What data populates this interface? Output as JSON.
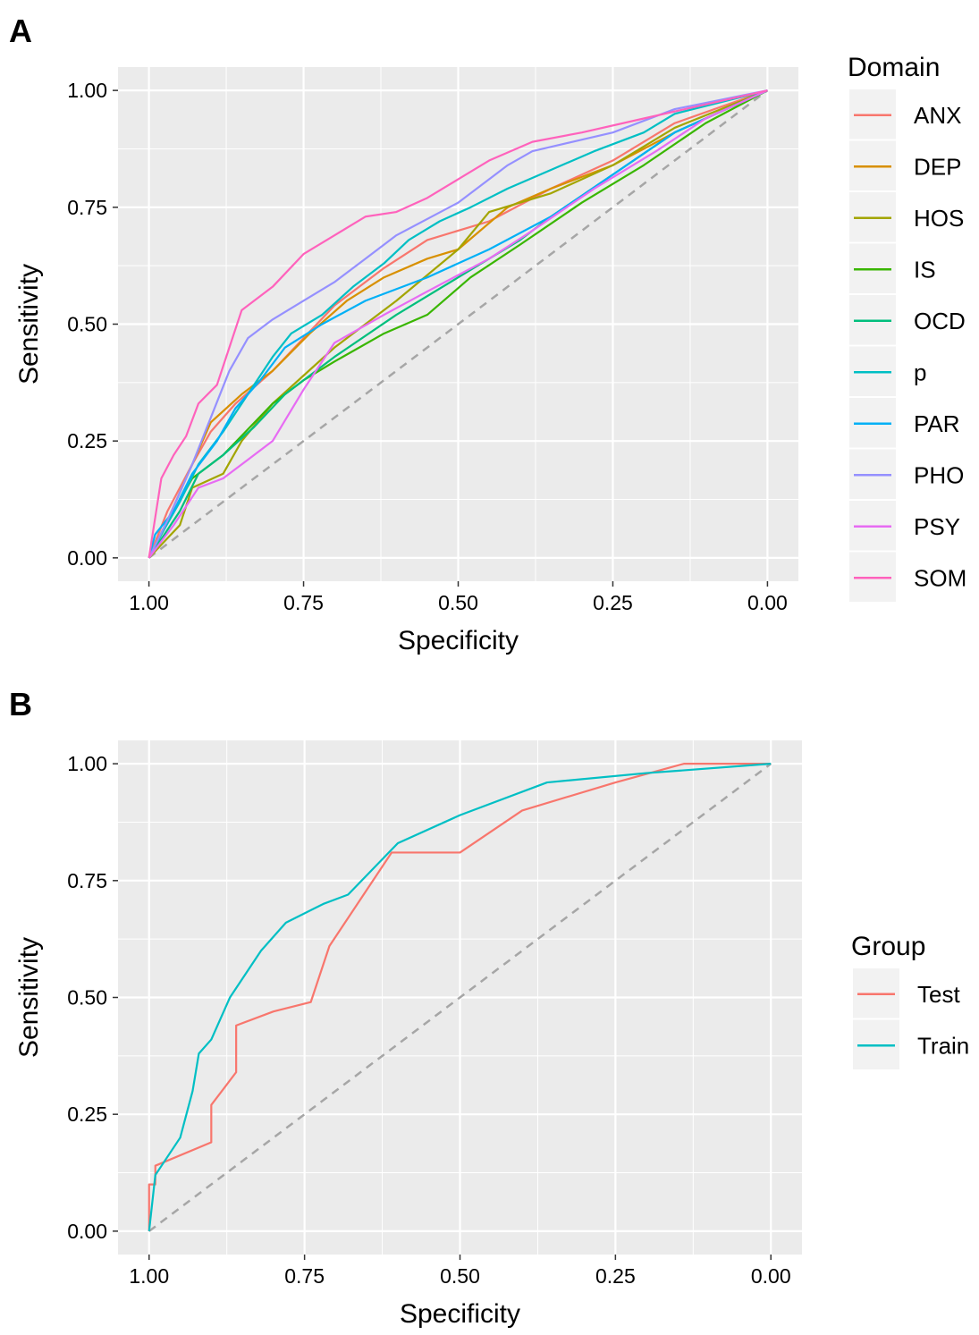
{
  "chart_data": [
    {
      "type": "line",
      "label": "A",
      "xlabel": "Specificity",
      "ylabel": "Sensitivity",
      "legend_title": "Domain",
      "legend": "right",
      "grid": true,
      "xlim": [
        1.05,
        -0.05
      ],
      "ylim": [
        -0.05,
        1.05
      ],
      "xticks": [
        {
          "value": 1,
          "label": "1.00"
        },
        0.75,
        {
          "value": 0.5,
          "label": "0.50"
        },
        0.25,
        {
          "value": 0,
          "label": "0.00"
        }
      ],
      "yticks": [
        {
          "value": 0,
          "label": "0.00"
        },
        0.25,
        {
          "value": 0.5,
          "label": "0.50"
        },
        0.75,
        {
          "value": 1,
          "label": "1.00"
        }
      ],
      "series": [
        {
          "name": "ANX",
          "color": "#F8766D",
          "x": [
            1,
            0.97,
            0.93,
            0.9,
            0.86,
            0.8,
            0.75,
            0.7,
            0.62,
            0.55,
            0.45,
            0.35,
            0.25,
            0.15,
            0
          ],
          "values": [
            0,
            0.1,
            0.2,
            0.27,
            0.33,
            0.4,
            0.47,
            0.54,
            0.62,
            0.68,
            0.72,
            0.79,
            0.85,
            0.93,
            1
          ]
        },
        {
          "name": "DEP",
          "color": "#D89000",
          "x": [
            1,
            0.97,
            0.93,
            0.9,
            0.85,
            0.8,
            0.74,
            0.68,
            0.62,
            0.55,
            0.5,
            0.42,
            0.35,
            0.25,
            0.15,
            0
          ],
          "values": [
            0,
            0.08,
            0.2,
            0.29,
            0.35,
            0.4,
            0.48,
            0.55,
            0.6,
            0.64,
            0.66,
            0.75,
            0.79,
            0.84,
            0.91,
            1
          ]
        },
        {
          "name": "HOS",
          "color": "#A3A500",
          "x": [
            1,
            0.95,
            0.93,
            0.88,
            0.85,
            0.8,
            0.75,
            0.7,
            0.6,
            0.5,
            0.45,
            0.35,
            0.25,
            0.15,
            0
          ],
          "values": [
            0,
            0.07,
            0.15,
            0.18,
            0.25,
            0.33,
            0.39,
            0.45,
            0.55,
            0.66,
            0.74,
            0.78,
            0.84,
            0.92,
            1
          ]
        },
        {
          "name": "IS",
          "color": "#39B600",
          "x": [
            1,
            0.96,
            0.93,
            0.88,
            0.8,
            0.75,
            0.7,
            0.62,
            0.55,
            0.48,
            0.4,
            0.3,
            0.2,
            0.1,
            0
          ],
          "values": [
            0,
            0.1,
            0.17,
            0.22,
            0.33,
            0.38,
            0.42,
            0.48,
            0.52,
            0.6,
            0.67,
            0.76,
            0.84,
            0.93,
            1
          ]
        },
        {
          "name": "OCD",
          "color": "#00BF7D",
          "x": [
            1,
            0.95,
            0.92,
            0.88,
            0.83,
            0.78,
            0.7,
            0.6,
            0.5,
            0.4,
            0.35,
            0.25,
            0.15,
            0
          ],
          "values": [
            0,
            0.1,
            0.18,
            0.22,
            0.28,
            0.35,
            0.43,
            0.52,
            0.6,
            0.68,
            0.73,
            0.82,
            0.91,
            1
          ]
        },
        {
          "name": "p",
          "color": "#00BFC4",
          "x": [
            1,
            0.98,
            0.95,
            0.92,
            0.88,
            0.84,
            0.8,
            0.77,
            0.72,
            0.67,
            0.62,
            0.58,
            0.53,
            0.48,
            0.42,
            0.35,
            0.28,
            0.2,
            0.15,
            0
          ],
          "values": [
            0,
            0.05,
            0.12,
            0.2,
            0.27,
            0.35,
            0.43,
            0.48,
            0.52,
            0.58,
            0.63,
            0.68,
            0.72,
            0.75,
            0.79,
            0.83,
            0.87,
            0.91,
            0.95,
            1
          ]
        },
        {
          "name": "PAR",
          "color": "#00B0F6",
          "x": [
            1,
            0.99,
            0.96,
            0.93,
            0.89,
            0.86,
            0.82,
            0.78,
            0.72,
            0.65,
            0.55,
            0.45,
            0.35,
            0.25,
            0.15,
            0
          ],
          "values": [
            0,
            0.05,
            0.1,
            0.18,
            0.25,
            0.32,
            0.38,
            0.45,
            0.5,
            0.55,
            0.6,
            0.66,
            0.73,
            0.82,
            0.91,
            1
          ]
        },
        {
          "name": "PHO",
          "color": "#9590FF",
          "x": [
            1,
            0.97,
            0.93,
            0.9,
            0.87,
            0.84,
            0.8,
            0.75,
            0.7,
            0.65,
            0.6,
            0.5,
            0.42,
            0.38,
            0.25,
            0.15,
            0
          ],
          "values": [
            0,
            0.08,
            0.2,
            0.3,
            0.4,
            0.47,
            0.51,
            0.55,
            0.59,
            0.64,
            0.69,
            0.76,
            0.84,
            0.87,
            0.91,
            0.96,
            1
          ]
        },
        {
          "name": "PSY",
          "color": "#E76BF3",
          "x": [
            1,
            0.96,
            0.92,
            0.88,
            0.84,
            0.8,
            0.75,
            0.7,
            0.62,
            0.55,
            0.45,
            0.38,
            0.28,
            0.18,
            0.1,
            0
          ],
          "values": [
            0,
            0.07,
            0.15,
            0.17,
            0.21,
            0.25,
            0.36,
            0.46,
            0.52,
            0.57,
            0.64,
            0.7,
            0.79,
            0.87,
            0.94,
            1
          ]
        },
        {
          "name": "SOM",
          "color": "#FF62BC",
          "x": [
            1,
            0.98,
            0.96,
            0.94,
            0.92,
            0.89,
            0.87,
            0.85,
            0.8,
            0.75,
            0.7,
            0.65,
            0.6,
            0.55,
            0.5,
            0.45,
            0.38,
            0.3,
            0.2,
            0.1,
            0
          ],
          "values": [
            0,
            0.17,
            0.22,
            0.26,
            0.33,
            0.37,
            0.45,
            0.53,
            0.58,
            0.65,
            0.69,
            0.73,
            0.74,
            0.77,
            0.81,
            0.85,
            0.89,
            0.91,
            0.94,
            0.97,
            1
          ]
        }
      ]
    },
    {
      "type": "line",
      "label": "B",
      "xlabel": "Specificity",
      "ylabel": "Sensitivity",
      "legend_title": "Group",
      "legend": "right",
      "grid": true,
      "xlim": [
        1.05,
        -0.05
      ],
      "ylim": [
        -0.05,
        1.05
      ],
      "xticks": [
        {
          "value": 1,
          "label": "1.00"
        },
        0.75,
        {
          "value": 0.5,
          "label": "0.50"
        },
        0.25,
        {
          "value": 0,
          "label": "0.00"
        }
      ],
      "yticks": [
        {
          "value": 0,
          "label": "0.00"
        },
        0.25,
        {
          "value": 0.5,
          "label": "0.50"
        },
        0.75,
        {
          "value": 1,
          "label": "1.00"
        }
      ],
      "series": [
        {
          "name": "Test",
          "color": "#F8766D",
          "x": [
            1,
            1,
            0.99,
            0.99,
            0.9,
            0.9,
            0.86,
            0.86,
            0.8,
            0.74,
            0.71,
            0.65,
            0.61,
            0.5,
            0.4,
            0.25,
            0.14,
            0
          ],
          "values": [
            0,
            0.1,
            0.1,
            0.14,
            0.19,
            0.27,
            0.34,
            0.44,
            0.47,
            0.49,
            0.61,
            0.73,
            0.81,
            0.81,
            0.9,
            0.96,
            1,
            1
          ]
        },
        {
          "name": "Train",
          "color": "#00BFC4",
          "x": [
            1,
            0.99,
            0.98,
            0.95,
            0.93,
            0.92,
            0.9,
            0.87,
            0.82,
            0.78,
            0.72,
            0.68,
            0.6,
            0.5,
            0.36,
            0.2,
            0
          ],
          "values": [
            0,
            0.12,
            0.14,
            0.2,
            0.3,
            0.38,
            0.41,
            0.5,
            0.6,
            0.66,
            0.7,
            0.72,
            0.83,
            0.89,
            0.96,
            0.98,
            1
          ]
        }
      ]
    }
  ]
}
